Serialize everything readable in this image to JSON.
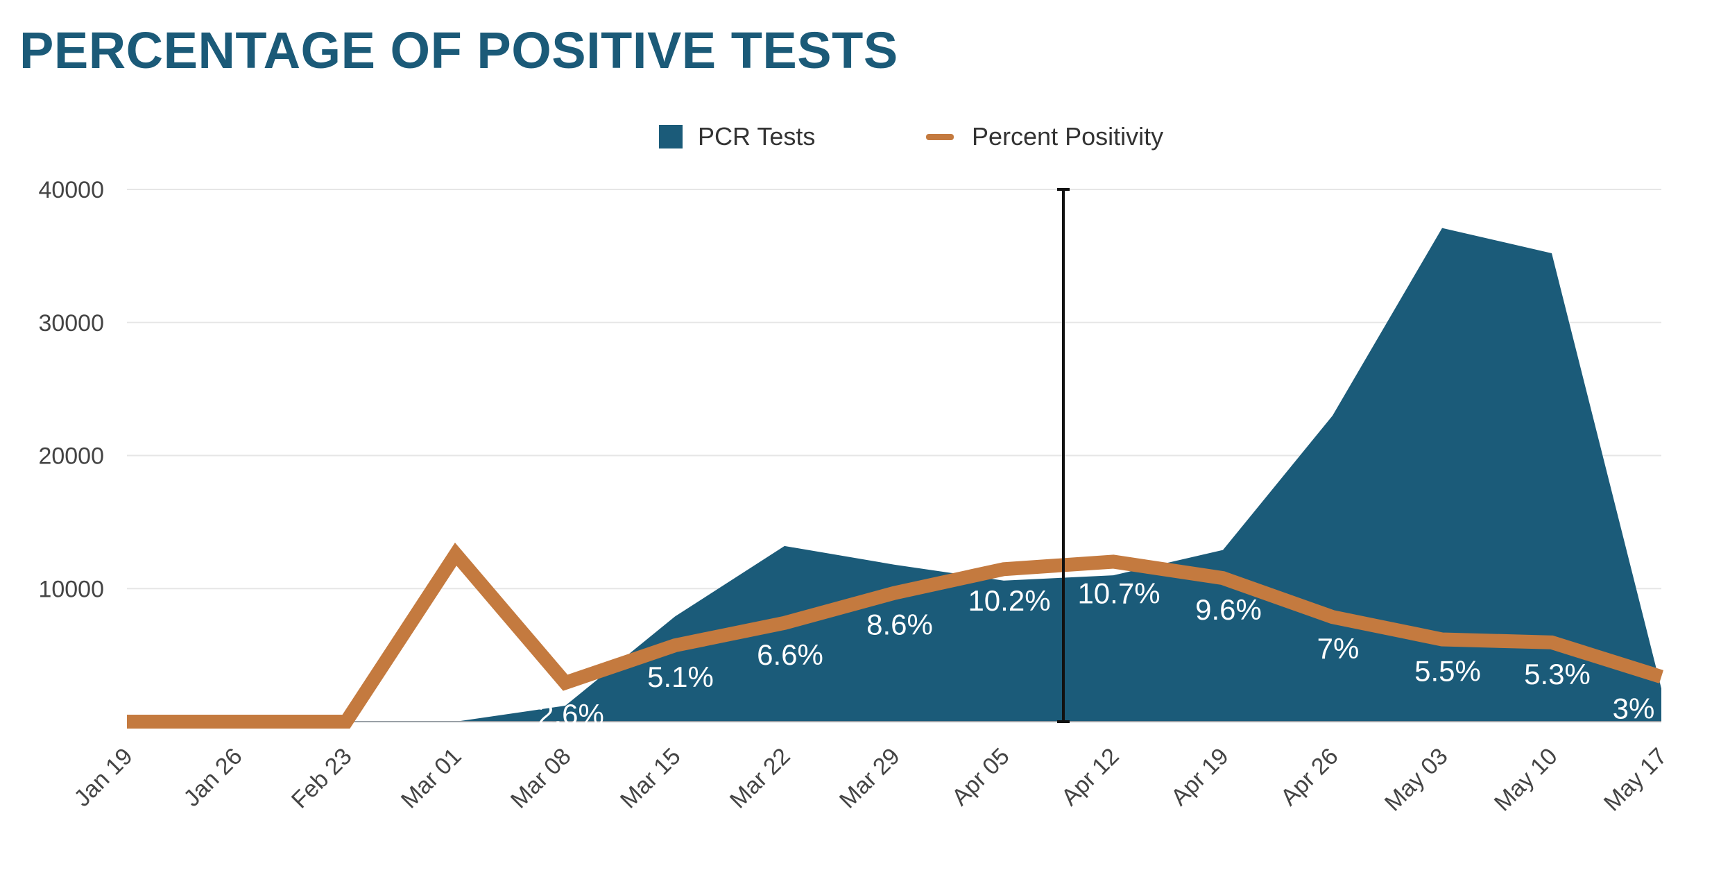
{
  "title": "PERCENTAGE OF POSITIVE TESTS",
  "colors": {
    "tests_area": "#1b5b79",
    "positivity_line": "#c47a3f",
    "title": "#1b5a78",
    "gridline": "#e6e6e6"
  },
  "chart_data": {
    "type": "area",
    "title": "PERCENTAGE OF POSITIVE TESTS",
    "legend_position": "top-center",
    "grid": true,
    "categories": [
      "Jan 19",
      "Jan 26",
      "Feb 23",
      "Mar 01",
      "Mar 08",
      "Mar 15",
      "Mar 22",
      "Mar 29",
      "Apr 05",
      "Apr 12",
      "Apr 19",
      "Apr 26",
      "May 03",
      "May 10",
      "May 17"
    ],
    "y_ticks": [
      "40000",
      "30000",
      "20000",
      "10000"
    ],
    "ylim": [
      0,
      40000
    ],
    "series": [
      {
        "name": "PCR Tests",
        "type": "area",
        "axis": "left",
        "values": [
          0,
          0,
          0,
          0,
          1200,
          7900,
          13200,
          11800,
          10600,
          11000,
          12900,
          23000,
          37100,
          35200,
          2500
        ]
      },
      {
        "name": "Percent Positivity",
        "type": "line",
        "axis": "right",
        "unit": "%",
        "values": [
          0,
          0,
          0,
          11.2,
          2.6,
          5.1,
          6.6,
          8.6,
          10.2,
          10.7,
          9.6,
          7,
          5.5,
          5.3,
          3
        ],
        "labels": [
          "",
          "",
          "",
          "",
          "2.6%",
          "5.1%",
          "6.6%",
          "8.6%",
          "10.2%",
          "10.7%",
          "9.6%",
          "7%",
          "5.5%",
          "5.3%",
          "3%"
        ]
      }
    ]
  }
}
